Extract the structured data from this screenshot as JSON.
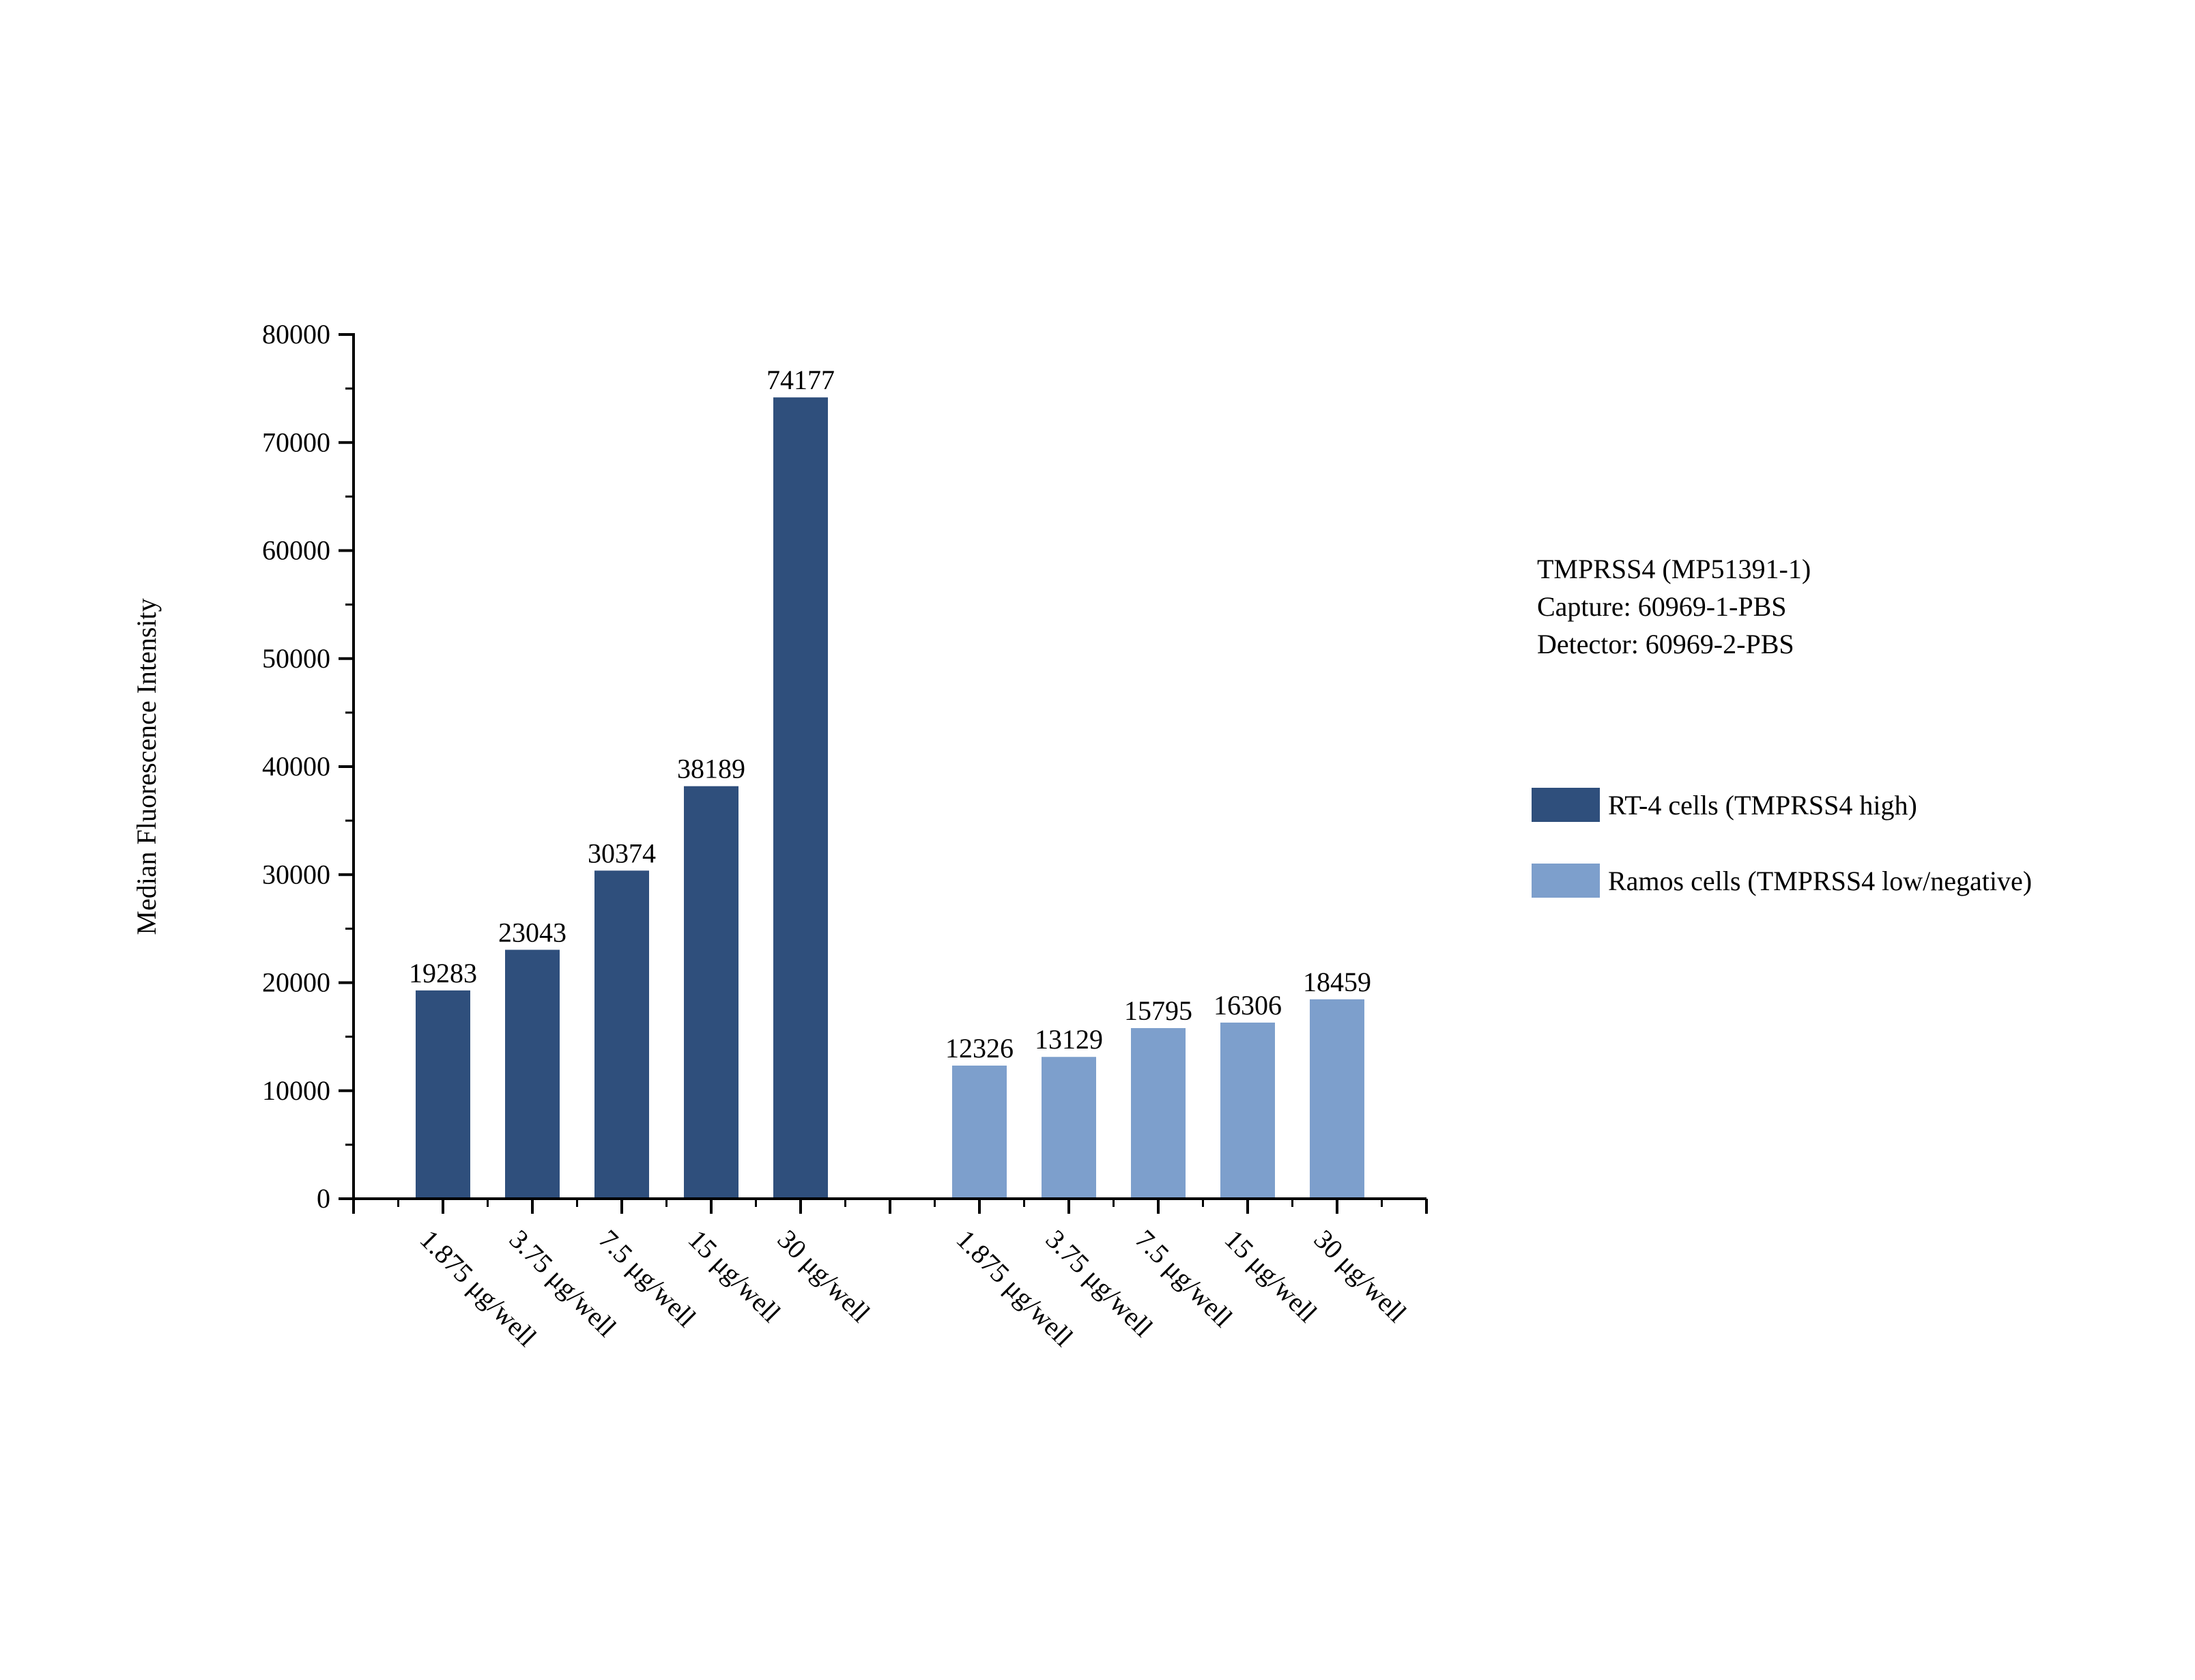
{
  "colors": {
    "rt4": "#2f4f7c",
    "ramos": "#7d9fcc",
    "axis": "#000000"
  },
  "notes": {
    "lines": [
      "TMPRSS4 (MP51391-1)",
      "Capture: 60969-1-PBS",
      "Detector: 60969-2-PBS"
    ]
  },
  "chart_data": {
    "type": "bar",
    "title": "",
    "xlabel": "",
    "ylabel": "Median Fluorescence Intensity",
    "ylim": [
      0,
      80000
    ],
    "yticks": [
      0,
      10000,
      20000,
      30000,
      40000,
      50000,
      60000,
      70000,
      80000
    ],
    "grid": false,
    "legend_position": "right",
    "series": [
      {
        "name": "RT-4 cells (TMPRSS4 high)",
        "color": "#2f4f7c",
        "categories": [
          "1.875 μg/well",
          "3.75 μg/well",
          "7.5 μg/well",
          "15 μg/well",
          "30 μg/well"
        ],
        "values": [
          19283,
          23043,
          30374,
          38189,
          74177
        ]
      },
      {
        "name": "Ramos cells (TMPRSS4 low/negative)",
        "color": "#7d9fcc",
        "categories": [
          "1.875 μg/well",
          "3.75 μg/well",
          "7.5 μg/well",
          "15 μg/well",
          "30 μg/well"
        ],
        "values": [
          12326,
          13129,
          15795,
          16306,
          18459
        ]
      }
    ]
  }
}
